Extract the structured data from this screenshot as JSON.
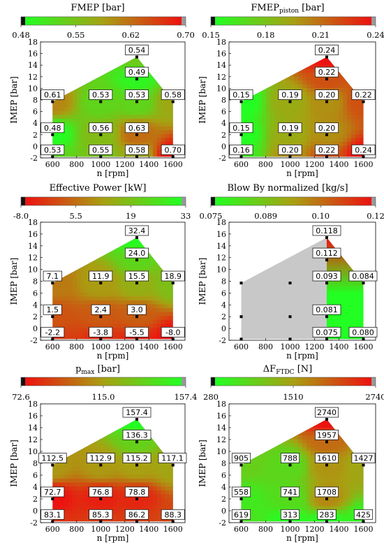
{
  "chart_data": [
    {
      "type": "heatmap",
      "title": "FMEP",
      "title_sub": "",
      "unit": "[bar]",
      "colorbar": {
        "ticks": [
          "0.48",
          "0.55",
          "0.62",
          "0.70"
        ],
        "range": [
          0.48,
          0.7
        ],
        "gradient": "green-to-red"
      },
      "xlabel": "n [rpm]",
      "ylabel": "IMEP  [bar]",
      "xticks": [
        600,
        800,
        1000,
        1200,
        1400,
        1600
      ],
      "yticks": [
        -2,
        0,
        2,
        4,
        6,
        8,
        10,
        12,
        14,
        16,
        18
      ],
      "xlim": [
        500,
        1700
      ],
      "ylim": [
        -2,
        18
      ],
      "grey_region": false,
      "points": [
        {
          "x": 600,
          "y": -1.8,
          "label": "0.53"
        },
        {
          "x": 1000,
          "y": -1.8,
          "label": "0.55"
        },
        {
          "x": 1300,
          "y": -1.8,
          "label": "0.58"
        },
        {
          "x": 1600,
          "y": -1.8,
          "label": "0.70"
        },
        {
          "x": 600,
          "y": 2,
          "label": "0.48"
        },
        {
          "x": 1000,
          "y": 2,
          "label": "0.56"
        },
        {
          "x": 1300,
          "y": 2,
          "label": "0.63"
        },
        {
          "x": 600,
          "y": 7.7,
          "label": "0.61"
        },
        {
          "x": 1000,
          "y": 7.7,
          "label": "0.53"
        },
        {
          "x": 1300,
          "y": 7.7,
          "label": "0.53"
        },
        {
          "x": 1600,
          "y": 7.7,
          "label": "0.58"
        },
        {
          "x": 1300,
          "y": 11.6,
          "label": "0.49"
        },
        {
          "x": 1300,
          "y": 15.4,
          "label": "0.54"
        }
      ]
    },
    {
      "type": "heatmap",
      "title": "FMEP",
      "title_sub": "piston",
      "unit": "[bar]",
      "colorbar": {
        "ticks": [
          "0.15",
          "0.18",
          "0.21",
          "0.24"
        ],
        "range": [
          0.15,
          0.24
        ],
        "gradient": "green-to-red"
      },
      "xlabel": "n [rpm]",
      "ylabel": "IMEP  [bar]",
      "xticks": [
        600,
        800,
        1000,
        1200,
        1400,
        1600
      ],
      "yticks": [
        -2,
        0,
        2,
        4,
        6,
        8,
        10,
        12,
        14,
        16,
        18
      ],
      "xlim": [
        500,
        1700
      ],
      "ylim": [
        -2,
        18
      ],
      "grey_region": false,
      "points": [
        {
          "x": 600,
          "y": -1.8,
          "label": "0.16"
        },
        {
          "x": 1000,
          "y": -1.8,
          "label": "0.20"
        },
        {
          "x": 1300,
          "y": -1.8,
          "label": "0.22"
        },
        {
          "x": 1600,
          "y": -1.8,
          "label": "0.24"
        },
        {
          "x": 600,
          "y": 2,
          "label": "0.15"
        },
        {
          "x": 1000,
          "y": 2,
          "label": "0.19"
        },
        {
          "x": 1300,
          "y": 2,
          "label": "0.20"
        },
        {
          "x": 600,
          "y": 7.7,
          "label": "0.15"
        },
        {
          "x": 1000,
          "y": 7.7,
          "label": "0.19"
        },
        {
          "x": 1300,
          "y": 7.7,
          "label": "0.20"
        },
        {
          "x": 1600,
          "y": 7.7,
          "label": "0.22"
        },
        {
          "x": 1300,
          "y": 11.6,
          "label": "0.22"
        },
        {
          "x": 1300,
          "y": 15.4,
          "label": "0.24"
        }
      ]
    },
    {
      "type": "heatmap",
      "title": "Effective Power",
      "title_sub": "",
      "unit": "[kW]",
      "colorbar": {
        "ticks": [
          "-8.0",
          "5.5",
          "19",
          "33"
        ],
        "range": [
          -8.0,
          33
        ],
        "gradient": "red-to-green"
      },
      "xlabel": "n [rpm]",
      "ylabel": "IMEP  [bar]",
      "xticks": [
        600,
        800,
        1000,
        1200,
        1400,
        1600
      ],
      "yticks": [
        -2,
        0,
        2,
        4,
        6,
        8,
        10,
        12,
        14,
        16,
        18
      ],
      "xlim": [
        500,
        1700
      ],
      "ylim": [
        -2,
        18
      ],
      "grey_region": false,
      "points": [
        {
          "x": 600,
          "y": -1.8,
          "label": "-2.2"
        },
        {
          "x": 1000,
          "y": -1.8,
          "label": "-3.8"
        },
        {
          "x": 1300,
          "y": -1.8,
          "label": "-5.5"
        },
        {
          "x": 1600,
          "y": -1.8,
          "label": "-8.0"
        },
        {
          "x": 600,
          "y": 2,
          "label": "1.5"
        },
        {
          "x": 1000,
          "y": 2,
          "label": "2.4"
        },
        {
          "x": 1300,
          "y": 2,
          "label": "3.0"
        },
        {
          "x": 600,
          "y": 7.7,
          "label": "7.1"
        },
        {
          "x": 1000,
          "y": 7.7,
          "label": "11.9"
        },
        {
          "x": 1300,
          "y": 7.7,
          "label": "15.5"
        },
        {
          "x": 1600,
          "y": 7.7,
          "label": "18.9"
        },
        {
          "x": 1300,
          "y": 11.6,
          "label": "24.0"
        },
        {
          "x": 1300,
          "y": 15.4,
          "label": "32.4"
        }
      ]
    },
    {
      "type": "heatmap",
      "title": "Blow By normalized",
      "title_sub": "",
      "unit": "[kg/s]",
      "colorbar": {
        "ticks": [
          "0.075",
          "0.089",
          "0.10",
          "0.12"
        ],
        "range": [
          0.075,
          0.12
        ],
        "gradient": "green-to-red"
      },
      "xlabel": "n [rpm]",
      "ylabel": "IMEP  [bar]",
      "xticks": [
        600,
        800,
        1000,
        1200,
        1400,
        1600
      ],
      "yticks": [
        -2,
        0,
        2,
        4,
        6,
        8,
        10,
        12,
        14,
        16,
        18
      ],
      "xlim": [
        500,
        1700
      ],
      "ylim": [
        -2,
        18
      ],
      "grey_region": true,
      "points": [
        {
          "x": 600,
          "y": -1.8,
          "label": ""
        },
        {
          "x": 1000,
          "y": -1.8,
          "label": ""
        },
        {
          "x": 1300,
          "y": -1.8,
          "label": "0.075"
        },
        {
          "x": 1600,
          "y": -1.8,
          "label": "0.080"
        },
        {
          "x": 600,
          "y": 2,
          "label": ""
        },
        {
          "x": 1000,
          "y": 2,
          "label": ""
        },
        {
          "x": 1300,
          "y": 2,
          "label": "0.081"
        },
        {
          "x": 600,
          "y": 7.7,
          "label": ""
        },
        {
          "x": 1000,
          "y": 7.7,
          "label": ""
        },
        {
          "x": 1300,
          "y": 7.7,
          "label": "0.093"
        },
        {
          "x": 1600,
          "y": 7.7,
          "label": "0.084"
        },
        {
          "x": 1300,
          "y": 11.6,
          "label": "0.112"
        },
        {
          "x": 1300,
          "y": 15.4,
          "label": "0.118"
        }
      ]
    },
    {
      "type": "heatmap",
      "title": "p",
      "title_sub": "max",
      "unit": "[bar]",
      "colorbar": {
        "ticks": [
          "72.6",
          "115.0",
          "157.4"
        ],
        "range": [
          72.6,
          157.4
        ],
        "gradient": "red-to-green"
      },
      "xlabel": "n [rpm]",
      "ylabel": "IMEP  [bar]",
      "xticks": [
        600,
        800,
        1000,
        1200,
        1400,
        1600
      ],
      "yticks": [
        -2,
        0,
        2,
        4,
        6,
        8,
        10,
        12,
        14,
        16,
        18
      ],
      "xlim": [
        500,
        1700
      ],
      "ylim": [
        -2,
        18
      ],
      "grey_region": false,
      "points": [
        {
          "x": 600,
          "y": -1.8,
          "label": "83.1"
        },
        {
          "x": 1000,
          "y": -1.8,
          "label": "85.3"
        },
        {
          "x": 1300,
          "y": -1.8,
          "label": "86.2"
        },
        {
          "x": 1600,
          "y": -1.8,
          "label": "88.3"
        },
        {
          "x": 600,
          "y": 2,
          "label": "72.7"
        },
        {
          "x": 1000,
          "y": 2,
          "label": "76.8"
        },
        {
          "x": 1300,
          "y": 2,
          "label": "78.8"
        },
        {
          "x": 600,
          "y": 7.7,
          "label": "112.5"
        },
        {
          "x": 1000,
          "y": 7.7,
          "label": "112.9"
        },
        {
          "x": 1300,
          "y": 7.7,
          "label": "115.2"
        },
        {
          "x": 1600,
          "y": 7.7,
          "label": "117.1"
        },
        {
          "x": 1300,
          "y": 11.6,
          "label": "136.3"
        },
        {
          "x": 1300,
          "y": 15.4,
          "label": "157.4"
        }
      ]
    },
    {
      "type": "heatmap",
      "title": "ΔF",
      "title_sub": "FTDC",
      "unit": "[N]",
      "colorbar": {
        "ticks": [
          "280",
          "1510",
          "2740"
        ],
        "range": [
          280,
          2740
        ],
        "gradient": "green-to-red"
      },
      "xlabel": "n [rpm]",
      "ylabel": "IMEP  [bar]",
      "xticks": [
        600,
        800,
        1000,
        1200,
        1400,
        1600
      ],
      "yticks": [
        -2,
        0,
        2,
        4,
        6,
        8,
        10,
        12,
        14,
        16,
        18
      ],
      "xlim": [
        500,
        1700
      ],
      "ylim": [
        -2,
        18
      ],
      "grey_region": false,
      "points": [
        {
          "x": 600,
          "y": -1.8,
          "label": "619"
        },
        {
          "x": 1000,
          "y": -1.8,
          "label": "313"
        },
        {
          "x": 1300,
          "y": -1.8,
          "label": "283"
        },
        {
          "x": 1600,
          "y": -1.8,
          "label": "425"
        },
        {
          "x": 600,
          "y": 2,
          "label": "558"
        },
        {
          "x": 1000,
          "y": 2,
          "label": "741"
        },
        {
          "x": 1300,
          "y": 2,
          "label": "1708"
        },
        {
          "x": 600,
          "y": 7.7,
          "label": "905"
        },
        {
          "x": 1000,
          "y": 7.7,
          "label": "788"
        },
        {
          "x": 1300,
          "y": 7.7,
          "label": "1610"
        },
        {
          "x": 1600,
          "y": 7.7,
          "label": "1427"
        },
        {
          "x": 1300,
          "y": 11.6,
          "label": "1957"
        },
        {
          "x": 1300,
          "y": 15.4,
          "label": "2740"
        }
      ]
    }
  ],
  "colors": {
    "green": "#22ff22",
    "red": "#ee1111",
    "grey_region": "#c8c8c8",
    "colorbar_black": "#111111",
    "colorbar_grey": "#999999"
  }
}
